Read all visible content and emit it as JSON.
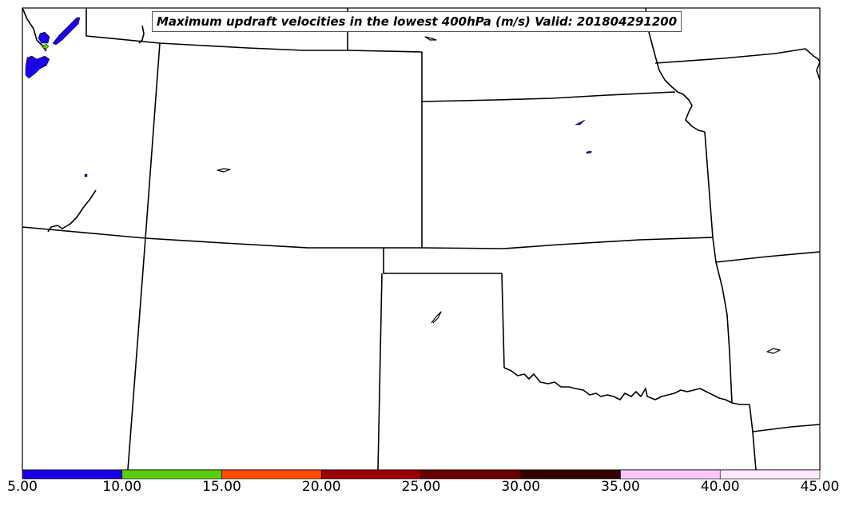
{
  "map": {
    "title": "Maximum updraft velocities in the lowest 400hPa (m/s) Valid: 201804291200",
    "colorbar": {
      "ticks": [
        "5.00",
        "10.00",
        "15.00",
        "20.00",
        "25.00",
        "30.00",
        "35.00",
        "40.00",
        "45.00"
      ],
      "colors": [
        "#1a00e6",
        "#5acc0a",
        "#ff4a00",
        "#990000",
        "#660000",
        "#330000",
        "#f9c7f9",
        "#ffe8ff"
      ]
    },
    "colors": {
      "land_fill": "#ffffff",
      "border_line": "#000000",
      "updraft_blue": "#1a00e6",
      "updraft_green": "#5acc0a"
    }
  }
}
